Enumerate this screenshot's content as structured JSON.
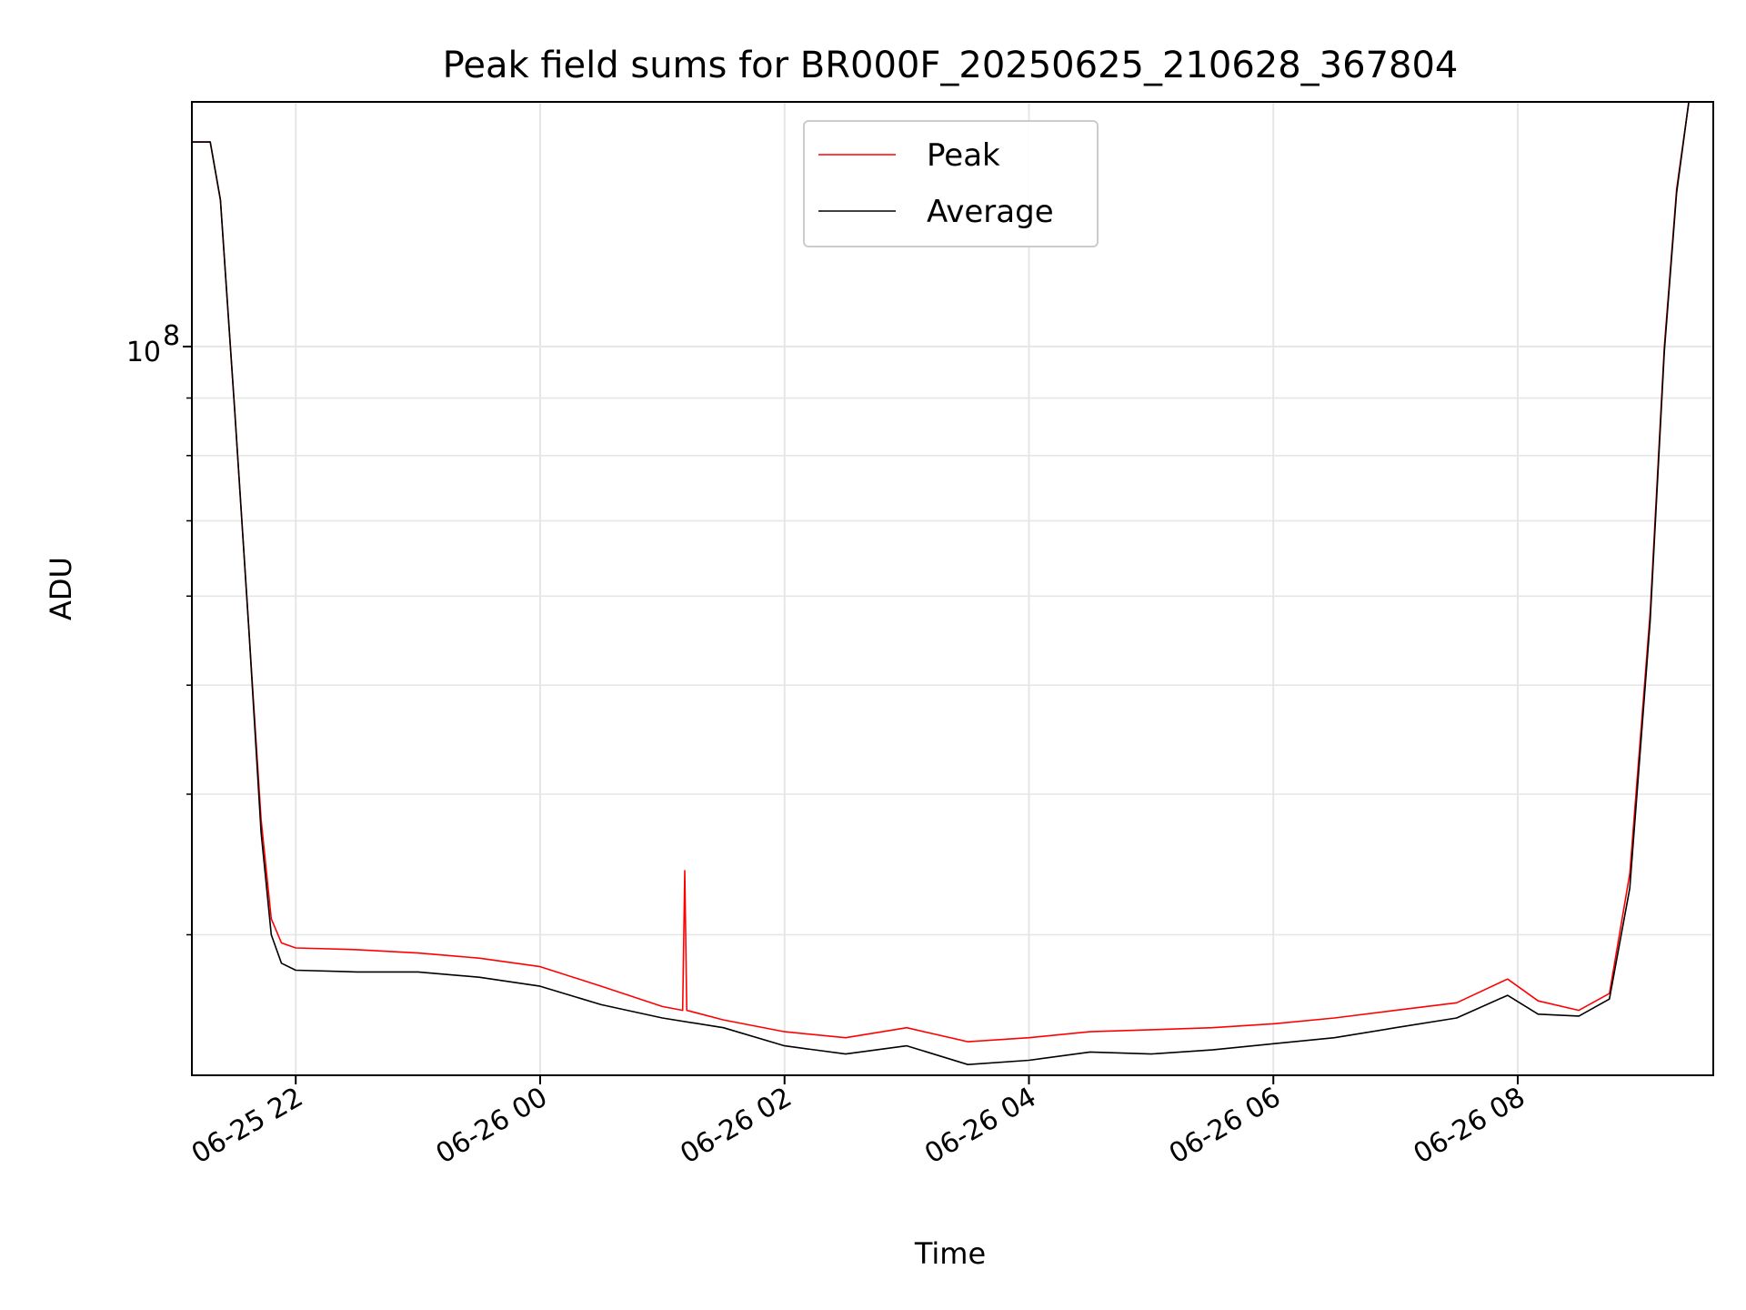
{
  "chart_data": {
    "type": "line",
    "title": "Peak field sums for BR000F_20250625_210628_367804",
    "xlabel": "Time",
    "ylabel": "ADU",
    "yscale": "log",
    "ylim": [
      22500000,
      165000000
    ],
    "xlim": [
      "2025-06-25 21:09",
      "2025-06-26 09:36"
    ],
    "x_ticks": [
      {
        "value": "2025-06-25 22:00",
        "label": "06-25 22"
      },
      {
        "value": "2025-06-26 00:00",
        "label": "06-26 00"
      },
      {
        "value": "2025-06-26 02:00",
        "label": "06-26 02"
      },
      {
        "value": "2025-06-26 04:00",
        "label": "06-26 04"
      },
      {
        "value": "2025-06-26 06:00",
        "label": "06-26 06"
      },
      {
        "value": "2025-06-26 08:00",
        "label": "06-26 08"
      }
    ],
    "y_ticks": [
      {
        "value": 100000000,
        "label": "10",
        "exponent": "8"
      }
    ],
    "grid": true,
    "legend_position": "top-center",
    "series": [
      {
        "name": "Peak",
        "color": "#ff0000",
        "points": [
          [
            "2025-06-25 21:09",
            152000000
          ],
          [
            "2025-06-25 21:18",
            152000000
          ],
          [
            "2025-06-25 21:23",
            135000000
          ],
          [
            "2025-06-25 21:30",
            88000000
          ],
          [
            "2025-06-25 21:37",
            56000000
          ],
          [
            "2025-06-25 21:43",
            38000000
          ],
          [
            "2025-06-25 21:48",
            31000000
          ],
          [
            "2025-06-25 21:53",
            29500000
          ],
          [
            "2025-06-25 22:00",
            29200000
          ],
          [
            "2025-06-25 22:30",
            29100000
          ],
          [
            "2025-06-25 23:00",
            28900000
          ],
          [
            "2025-06-25 23:30",
            28600000
          ],
          [
            "2025-06-26 00:00",
            28100000
          ],
          [
            "2025-06-26 00:30",
            27000000
          ],
          [
            "2025-06-26 01:00",
            25900000
          ],
          [
            "2025-06-26 01:10",
            25700000
          ],
          [
            "2025-06-26 01:11",
            34200000
          ],
          [
            "2025-06-26 01:12",
            25700000
          ],
          [
            "2025-06-26 01:30",
            25200000
          ],
          [
            "2025-06-26 02:00",
            24600000
          ],
          [
            "2025-06-26 02:30",
            24300000
          ],
          [
            "2025-06-26 03:00",
            24800000
          ],
          [
            "2025-06-26 03:30",
            24100000
          ],
          [
            "2025-06-26 04:00",
            24300000
          ],
          [
            "2025-06-26 04:30",
            24600000
          ],
          [
            "2025-06-26 05:00",
            24700000
          ],
          [
            "2025-06-26 05:30",
            24800000
          ],
          [
            "2025-06-26 06:00",
            25000000
          ],
          [
            "2025-06-26 06:30",
            25300000
          ],
          [
            "2025-06-26 07:00",
            25700000
          ],
          [
            "2025-06-26 07:30",
            26100000
          ],
          [
            "2025-06-26 07:55",
            27400000
          ],
          [
            "2025-06-26 08:10",
            26200000
          ],
          [
            "2025-06-26 08:30",
            25700000
          ],
          [
            "2025-06-26 08:45",
            26600000
          ],
          [
            "2025-06-26 08:55",
            34000000
          ],
          [
            "2025-06-26 09:05",
            58000000
          ],
          [
            "2025-06-26 09:12",
            100000000
          ],
          [
            "2025-06-26 09:18",
            138000000
          ],
          [
            "2025-06-26 09:24",
            165000000
          ]
        ]
      },
      {
        "name": "Average",
        "color": "#000000",
        "points": [
          [
            "2025-06-25 21:09",
            152000000
          ],
          [
            "2025-06-25 21:18",
            152000000
          ],
          [
            "2025-06-25 21:23",
            135000000
          ],
          [
            "2025-06-25 21:30",
            88000000
          ],
          [
            "2025-06-25 21:37",
            56000000
          ],
          [
            "2025-06-25 21:43",
            37000000
          ],
          [
            "2025-06-25 21:48",
            30000000
          ],
          [
            "2025-06-25 21:53",
            28300000
          ],
          [
            "2025-06-25 22:00",
            27900000
          ],
          [
            "2025-06-25 22:30",
            27800000
          ],
          [
            "2025-06-25 23:00",
            27800000
          ],
          [
            "2025-06-25 23:30",
            27500000
          ],
          [
            "2025-06-26 00:00",
            27000000
          ],
          [
            "2025-06-26 00:30",
            26000000
          ],
          [
            "2025-06-26 01:00",
            25300000
          ],
          [
            "2025-06-26 01:30",
            24800000
          ],
          [
            "2025-06-26 02:00",
            23900000
          ],
          [
            "2025-06-26 02:30",
            23500000
          ],
          [
            "2025-06-26 03:00",
            23900000
          ],
          [
            "2025-06-26 03:30",
            23000000
          ],
          [
            "2025-06-26 04:00",
            23200000
          ],
          [
            "2025-06-26 04:30",
            23600000
          ],
          [
            "2025-06-26 05:00",
            23500000
          ],
          [
            "2025-06-26 05:30",
            23700000
          ],
          [
            "2025-06-26 06:00",
            24000000
          ],
          [
            "2025-06-26 06:30",
            24300000
          ],
          [
            "2025-06-26 07:00",
            24800000
          ],
          [
            "2025-06-26 07:30",
            25300000
          ],
          [
            "2025-06-26 07:55",
            26500000
          ],
          [
            "2025-06-26 08:10",
            25500000
          ],
          [
            "2025-06-26 08:30",
            25400000
          ],
          [
            "2025-06-26 08:45",
            26300000
          ],
          [
            "2025-06-26 08:55",
            33000000
          ],
          [
            "2025-06-26 09:05",
            57000000
          ],
          [
            "2025-06-26 09:12",
            99000000
          ],
          [
            "2025-06-26 09:18",
            137000000
          ],
          [
            "2025-06-26 09:24",
            165000000
          ]
        ]
      }
    ]
  }
}
